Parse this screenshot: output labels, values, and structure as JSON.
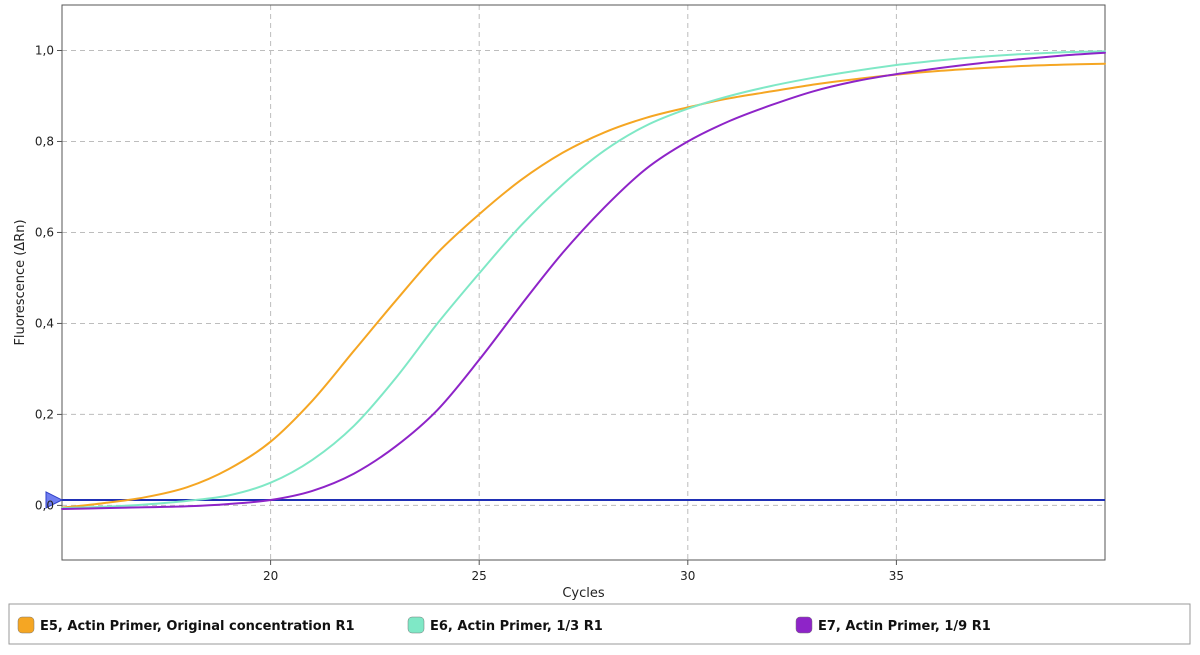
{
  "chart_data": {
    "type": "line",
    "title": "",
    "xlabel": "Cycles",
    "ylabel": "Fluorescence (ΔRn)",
    "xlim": [
      15,
      40
    ],
    "ylim": [
      -0.12,
      1.1
    ],
    "xticks": [
      20,
      25,
      30,
      35
    ],
    "xtick_labels": [
      "20",
      "25",
      "30",
      "35"
    ],
    "yticks": [
      0.0,
      0.2,
      0.4,
      0.6,
      0.8,
      1.0
    ],
    "ytick_labels": [
      "0,0",
      "0,2",
      "0,4",
      "0,6",
      "0,8",
      "1,0"
    ],
    "grid": true,
    "legend_position": "bottom",
    "threshold": {
      "value": 0.012,
      "color": "#1f2fb5"
    },
    "series": [
      {
        "name": "E5, Actin Primer, Original concentration R1",
        "color": "#f5a623",
        "x": [
          15,
          16,
          17,
          18,
          19,
          20,
          21,
          22,
          23,
          24,
          25,
          26,
          27,
          28,
          29,
          30,
          31,
          32,
          33,
          34,
          35,
          36,
          37,
          38,
          39,
          40
        ],
        "y": [
          -0.005,
          0.005,
          0.018,
          0.04,
          0.08,
          0.14,
          0.23,
          0.34,
          0.45,
          0.555,
          0.64,
          0.715,
          0.775,
          0.82,
          0.852,
          0.875,
          0.895,
          0.91,
          0.925,
          0.937,
          0.947,
          0.955,
          0.961,
          0.966,
          0.969,
          0.971
        ]
      },
      {
        "name": "E6, Actin Primer, 1/3 R1",
        "color": "#7fe8c6",
        "x": [
          15,
          16,
          17,
          18,
          19,
          20,
          21,
          22,
          23,
          24,
          25,
          26,
          27,
          28,
          29,
          30,
          31,
          32,
          33,
          34,
          35,
          36,
          37,
          38,
          39,
          40
        ],
        "y": [
          -0.006,
          -0.003,
          0.002,
          0.01,
          0.022,
          0.05,
          0.1,
          0.175,
          0.28,
          0.4,
          0.51,
          0.615,
          0.705,
          0.78,
          0.835,
          0.872,
          0.9,
          0.922,
          0.94,
          0.955,
          0.968,
          0.978,
          0.986,
          0.992,
          0.996,
          0.998
        ]
      },
      {
        "name": "E7, Actin Primer, 1/9 R1",
        "color": "#8e24c8",
        "x": [
          15,
          16,
          17,
          18,
          19,
          20,
          21,
          22,
          23,
          24,
          25,
          26,
          27,
          28,
          29,
          30,
          31,
          32,
          33,
          34,
          35,
          36,
          37,
          38,
          39,
          40
        ],
        "y": [
          -0.008,
          -0.006,
          -0.004,
          -0.002,
          0.003,
          0.012,
          0.032,
          0.07,
          0.13,
          0.21,
          0.32,
          0.44,
          0.555,
          0.655,
          0.74,
          0.8,
          0.845,
          0.88,
          0.91,
          0.932,
          0.948,
          0.961,
          0.972,
          0.981,
          0.989,
          0.995
        ]
      }
    ]
  }
}
